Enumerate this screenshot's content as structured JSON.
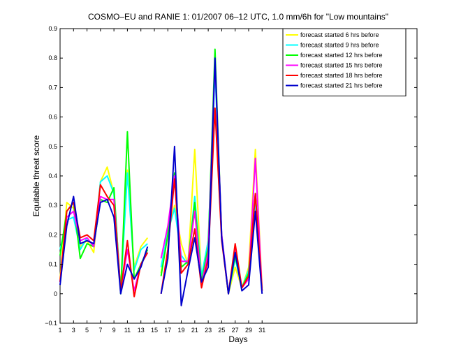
{
  "chart_data": {
    "type": "line",
    "title": "COSMO–EU and RANIE 1: 01/2007 06–12 UTC, 1.0 mm/6h for \"Low mountains\"",
    "xlabel": "Days",
    "ylabel": "Equitable threat score",
    "xlim": [
      1,
      54
    ],
    "ylim": [
      -0.1,
      0.9
    ],
    "x_ticks": [
      1,
      3,
      5,
      7,
      9,
      11,
      13,
      15,
      17,
      19,
      21,
      23,
      25,
      27,
      29,
      31
    ],
    "y_ticks": [
      -0.1,
      0,
      0.1,
      0.2,
      0.3,
      0.4,
      0.5,
      0.6,
      0.7,
      0.8,
      0.9
    ],
    "y_tick_labels": [
      "−0.1",
      "0",
      "0.1",
      "0.2",
      "0.3",
      "0.4",
      "0.5",
      "0.6",
      "0.7",
      "0.8",
      "0.9"
    ],
    "x": [
      1,
      2,
      3,
      4,
      5,
      6,
      7,
      8,
      9,
      10,
      11,
      12,
      13,
      14,
      15,
      16,
      17,
      18,
      19,
      20,
      21,
      22,
      23,
      24,
      25,
      26,
      27,
      28,
      29,
      30,
      31
    ],
    "legend_position": "top-right",
    "series": [
      {
        "name": "forecast started 6 hrs before",
        "color": "#ffff00",
        "values": [
          0.05,
          0.31,
          0.29,
          0.16,
          0.18,
          0.14,
          0.38,
          0.43,
          0.34,
          0.02,
          0.42,
          0.09,
          0.16,
          0.19,
          null,
          0.07,
          0.2,
          0.3,
          0.17,
          0.1,
          0.49,
          0.05,
          0.18,
          0.63,
          0.19,
          0.0,
          0.09,
          0.02,
          0.09,
          0.49,
          0.02
        ]
      },
      {
        "name": "forecast started 9 hrs before",
        "color": "#00ffff",
        "values": [
          0.15,
          0.25,
          0.26,
          0.15,
          0.19,
          0.16,
          0.38,
          0.4,
          0.34,
          0.01,
          0.41,
          0.08,
          0.15,
          0.17,
          null,
          0.09,
          0.21,
          0.29,
          0.13,
          0.1,
          0.33,
          0.06,
          0.18,
          0.76,
          0.2,
          0.0,
          0.12,
          0.02,
          0.08,
          0.3,
          0.02
        ]
      },
      {
        "name": "forecast started 12 hrs before",
        "color": "#00ff00",
        "values": [
          0.13,
          0.28,
          0.31,
          0.12,
          0.17,
          0.16,
          0.32,
          0.31,
          0.36,
          0.0,
          0.55,
          0.05,
          0.1,
          0.15,
          null,
          0.06,
          0.2,
          0.41,
          0.09,
          0.11,
          0.31,
          0.04,
          0.16,
          0.83,
          0.19,
          0.0,
          0.13,
          0.02,
          0.07,
          0.34,
          0.01
        ]
      },
      {
        "name": "forecast started 15 hrs before",
        "color": "#ff00ff",
        "values": [
          0.04,
          0.26,
          0.28,
          0.18,
          0.19,
          0.16,
          0.33,
          0.32,
          0.32,
          0.01,
          0.15,
          0.01,
          0.1,
          0.14,
          null,
          0.12,
          0.23,
          0.4,
          0.11,
          0.11,
          0.28,
          0.03,
          0.14,
          0.79,
          0.2,
          0.0,
          0.15,
          0.02,
          0.05,
          0.46,
          0.01
        ]
      },
      {
        "name": "forecast started 18 hrs before",
        "color": "#ff0000",
        "values": [
          0.04,
          0.28,
          0.31,
          0.19,
          0.2,
          0.18,
          0.37,
          0.33,
          0.3,
          0.01,
          0.18,
          -0.01,
          0.1,
          0.14,
          null,
          0.0,
          0.15,
          0.39,
          0.07,
          0.1,
          0.22,
          0.02,
          0.12,
          0.63,
          0.18,
          0.0,
          0.17,
          0.02,
          0.06,
          0.34,
          0.01
        ]
      },
      {
        "name": "forecast started 21 hrs before",
        "color": "#0000cc",
        "values": [
          0.03,
          0.23,
          0.33,
          0.17,
          0.18,
          0.17,
          0.31,
          0.32,
          0.26,
          0.0,
          0.1,
          0.05,
          0.09,
          0.16,
          null,
          0.0,
          0.12,
          0.5,
          -0.04,
          0.08,
          0.19,
          0.04,
          0.09,
          0.8,
          0.19,
          0.0,
          0.14,
          0.01,
          0.03,
          0.28,
          0.0
        ]
      }
    ]
  }
}
